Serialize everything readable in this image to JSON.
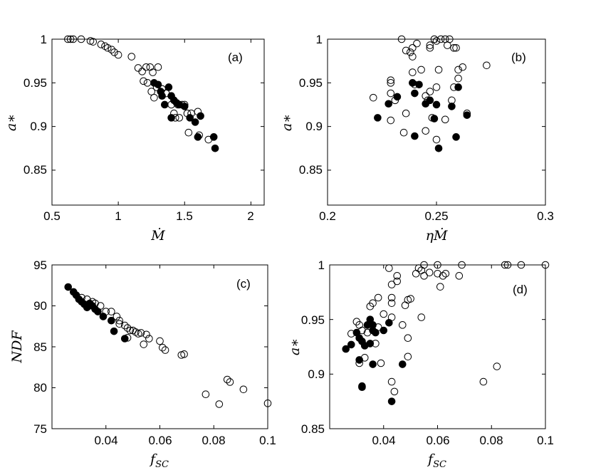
{
  "chart_data": [
    {
      "id": "a",
      "type": "scatter",
      "panel_label": "(a)",
      "xlabel": "Ṁ",
      "ylabel": "a∗",
      "xlim": [
        0.5,
        2.1
      ],
      "ylim": [
        0.81,
        1.0
      ],
      "xticks": [
        0.5,
        1,
        1.5,
        2
      ],
      "yticks": [
        0.85,
        0.9,
        0.95,
        1
      ],
      "xtick_labels": [
        "0.5",
        "1",
        "1.5",
        "2"
      ],
      "ytick_labels": [
        "0.85",
        "0.9",
        "0.95",
        "1"
      ],
      "series": [
        {
          "name": "open",
          "filled": false,
          "points": [
            [
              0.62,
              1.0
            ],
            [
              0.64,
              1.0
            ],
            [
              0.66,
              1.0
            ],
            [
              0.72,
              1.0
            ],
            [
              0.79,
              0.998
            ],
            [
              0.81,
              0.997
            ],
            [
              0.87,
              0.994
            ],
            [
              0.9,
              0.992
            ],
            [
              0.92,
              0.99
            ],
            [
              0.95,
              0.988
            ],
            [
              0.97,
              0.985
            ],
            [
              1.0,
              0.982
            ],
            [
              1.1,
              0.98
            ],
            [
              1.15,
              0.967
            ],
            [
              1.18,
              0.963
            ],
            [
              1.21,
              0.968
            ],
            [
              1.24,
              0.968
            ],
            [
              1.26,
              0.962
            ],
            [
              1.3,
              0.968
            ],
            [
              1.19,
              0.952
            ],
            [
              1.22,
              0.95
            ],
            [
              1.25,
              0.94
            ],
            [
              1.27,
              0.933
            ],
            [
              1.33,
              0.943
            ],
            [
              1.36,
              0.938
            ],
            [
              1.29,
              0.945
            ],
            [
              1.4,
              0.925
            ],
            [
              1.45,
              0.925
            ],
            [
              1.42,
              0.915
            ],
            [
              1.48,
              0.925
            ],
            [
              1.5,
              0.925
            ],
            [
              1.43,
              0.91
            ],
            [
              1.46,
              0.91
            ],
            [
              1.52,
              0.915
            ],
            [
              1.55,
              0.915
            ],
            [
              1.6,
              0.917
            ],
            [
              1.53,
              0.893
            ],
            [
              1.61,
              0.89
            ],
            [
              1.68,
              0.885
            ]
          ]
        },
        {
          "name": "filled",
          "filled": true,
          "points": [
            [
              1.27,
              0.95
            ],
            [
              1.3,
              0.948
            ],
            [
              1.32,
              0.94
            ],
            [
              1.33,
              0.935
            ],
            [
              1.35,
              0.925
            ],
            [
              1.38,
              0.945
            ],
            [
              1.4,
              0.935
            ],
            [
              1.42,
              0.93
            ],
            [
              1.44,
              0.927
            ],
            [
              1.46,
              0.925
            ],
            [
              1.5,
              0.923
            ],
            [
              1.54,
              0.91
            ],
            [
              1.58,
              0.905
            ],
            [
              1.62,
              0.912
            ],
            [
              1.4,
              0.91
            ],
            [
              1.6,
              0.888
            ],
            [
              1.72,
              0.888
            ],
            [
              1.73,
              0.875
            ]
          ]
        }
      ]
    },
    {
      "id": "b",
      "type": "scatter",
      "panel_label": "(b)",
      "xlabel": "ηṀ",
      "ylabel": "a∗",
      "xlim": [
        0.2,
        0.3
      ],
      "ylim": [
        0.81,
        1.0
      ],
      "xticks": [
        0.2,
        0.25,
        0.3
      ],
      "yticks": [
        0.85,
        0.9,
        0.95,
        1
      ],
      "xtick_labels": [
        "0.2",
        "0.25",
        "0.3"
      ],
      "ytick_labels": [
        "0.85",
        "0.9",
        "0.95",
        "1"
      ],
      "series": [
        {
          "name": "open",
          "filled": false,
          "points": [
            [
              0.234,
              1.0
            ],
            [
              0.249,
              1.0
            ],
            [
              0.252,
              1.0
            ],
            [
              0.254,
              1.0
            ],
            [
              0.256,
              1.0
            ],
            [
              0.25,
              0.998
            ],
            [
              0.241,
              0.995
            ],
            [
              0.247,
              0.993
            ],
            [
              0.239,
              0.99
            ],
            [
              0.247,
              0.99
            ],
            [
              0.255,
              0.993
            ],
            [
              0.258,
              0.99
            ],
            [
              0.259,
              0.99
            ],
            [
              0.236,
              0.987
            ],
            [
              0.238,
              0.985
            ],
            [
              0.239,
              0.98
            ],
            [
              0.26,
              0.965
            ],
            [
              0.262,
              0.968
            ],
            [
              0.273,
              0.97
            ],
            [
              0.239,
              0.962
            ],
            [
              0.243,
              0.965
            ],
            [
              0.251,
              0.965
            ],
            [
              0.26,
              0.955
            ],
            [
              0.229,
              0.953
            ],
            [
              0.229,
              0.95
            ],
            [
              0.221,
              0.933
            ],
            [
              0.229,
              0.938
            ],
            [
              0.231,
              0.93
            ],
            [
              0.24,
              0.948
            ],
            [
              0.245,
              0.935
            ],
            [
              0.247,
              0.94
            ],
            [
              0.25,
              0.945
            ],
            [
              0.246,
              0.93
            ],
            [
              0.258,
              0.945
            ],
            [
              0.257,
              0.93
            ],
            [
              0.264,
              0.915
            ],
            [
              0.236,
              0.915
            ],
            [
              0.248,
              0.91
            ],
            [
              0.254,
              0.908
            ],
            [
              0.229,
              0.907
            ],
            [
              0.235,
              0.893
            ],
            [
              0.245,
              0.895
            ],
            [
              0.25,
              0.885
            ]
          ]
        },
        {
          "name": "filled",
          "filled": true,
          "points": [
            [
              0.232,
              0.934
            ],
            [
              0.239,
              0.95
            ],
            [
              0.24,
              0.938
            ],
            [
              0.242,
              0.948
            ],
            [
              0.228,
              0.926
            ],
            [
              0.245,
              0.926
            ],
            [
              0.247,
              0.93
            ],
            [
              0.26,
              0.945
            ],
            [
              0.25,
              0.925
            ],
            [
              0.257,
              0.923
            ],
            [
              0.264,
              0.913
            ],
            [
              0.223,
              0.91
            ],
            [
              0.249,
              0.909
            ],
            [
              0.24,
              0.889
            ],
            [
              0.259,
              0.888
            ],
            [
              0.251,
              0.875
            ]
          ]
        }
      ]
    },
    {
      "id": "c",
      "type": "scatter",
      "panel_label": "(c)",
      "xlabel": "fSC",
      "ylabel": "NDF",
      "xlim": [
        0.02,
        0.1
      ],
      "ylim": [
        75,
        95
      ],
      "xticks": [
        0.04,
        0.06,
        0.08,
        0.1
      ],
      "yticks": [
        75,
        80,
        85,
        90,
        95
      ],
      "xtick_labels": [
        "0.04",
        "0.06",
        "0.08",
        "0.1"
      ],
      "ytick_labels": [
        "75",
        "80",
        "85",
        "90",
        "95"
      ],
      "series": [
        {
          "name": "open",
          "filled": false,
          "points": [
            [
              0.031,
              91.0
            ],
            [
              0.033,
              90.8
            ],
            [
              0.035,
              90.5
            ],
            [
              0.036,
              90.3
            ],
            [
              0.038,
              90.0
            ],
            [
              0.04,
              89.3
            ],
            [
              0.042,
              89.3
            ],
            [
              0.044,
              88.7
            ],
            [
              0.045,
              88.2
            ],
            [
              0.047,
              87.6
            ],
            [
              0.048,
              87.3
            ],
            [
              0.049,
              87.0
            ],
            [
              0.05,
              87.0
            ],
            [
              0.051,
              86.8
            ],
            [
              0.053,
              86.7
            ],
            [
              0.055,
              86.5
            ],
            [
              0.056,
              86.0
            ],
            [
              0.045,
              87.8
            ],
            [
              0.048,
              86.1
            ],
            [
              0.052,
              86.6
            ],
            [
              0.054,
              85.3
            ],
            [
              0.06,
              85.7
            ],
            [
              0.061,
              84.9
            ],
            [
              0.062,
              84.6
            ],
            [
              0.068,
              84.0
            ],
            [
              0.069,
              84.1
            ],
            [
              0.085,
              81.0
            ],
            [
              0.086,
              80.7
            ],
            [
              0.077,
              79.2
            ],
            [
              0.091,
              79.8
            ],
            [
              0.082,
              78.0
            ],
            [
              0.1,
              78.1
            ]
          ]
        },
        {
          "name": "filled",
          "filled": true,
          "points": [
            [
              0.026,
              92.3
            ],
            [
              0.028,
              91.7
            ],
            [
              0.029,
              91.3
            ],
            [
              0.03,
              90.8
            ],
            [
              0.031,
              90.5
            ],
            [
              0.032,
              90.2
            ],
            [
              0.033,
              89.8
            ],
            [
              0.034,
              90.3
            ],
            [
              0.035,
              90.0
            ],
            [
              0.036,
              89.6
            ],
            [
              0.037,
              89.3
            ],
            [
              0.039,
              88.7
            ],
            [
              0.042,
              88.2
            ],
            [
              0.043,
              86.9
            ],
            [
              0.047,
              86.0
            ]
          ]
        }
      ]
    },
    {
      "id": "d",
      "type": "scatter",
      "panel_label": "(d)",
      "xlabel": "fSC",
      "ylabel": "a∗",
      "xlim": [
        0.02,
        0.1
      ],
      "ylim": [
        0.85,
        1.0
      ],
      "xticks": [
        0.04,
        0.06,
        0.08,
        0.1
      ],
      "yticks": [
        0.85,
        0.9,
        0.95,
        1
      ],
      "xtick_labels": [
        "0.04",
        "0.06",
        "0.08",
        "0.1"
      ],
      "ytick_labels": [
        "0.85",
        "0.9",
        "0.95",
        "1"
      ],
      "series": [
        {
          "name": "open",
          "filled": false,
          "points": [
            [
              0.055,
              1.0
            ],
            [
              0.06,
              1.0
            ],
            [
              0.069,
              1.0
            ],
            [
              0.085,
              1.0
            ],
            [
              0.086,
              1.0
            ],
            [
              0.091,
              1.0
            ],
            [
              0.1,
              1.0
            ],
            [
              0.042,
              0.997
            ],
            [
              0.053,
              0.997
            ],
            [
              0.054,
              0.995
            ],
            [
              0.057,
              0.993
            ],
            [
              0.052,
              0.992
            ],
            [
              0.06,
              0.992
            ],
            [
              0.062,
              0.99
            ],
            [
              0.063,
              0.992
            ],
            [
              0.045,
              0.99
            ],
            [
              0.055,
              0.99
            ],
            [
              0.045,
              0.985
            ],
            [
              0.068,
              0.99
            ],
            [
              0.043,
              0.982
            ],
            [
              0.061,
              0.98
            ],
            [
              0.038,
              0.97
            ],
            [
              0.043,
              0.97
            ],
            [
              0.049,
              0.968
            ],
            [
              0.05,
              0.969
            ],
            [
              0.043,
              0.965
            ],
            [
              0.036,
              0.965
            ],
            [
              0.035,
              0.962
            ],
            [
              0.048,
              0.963
            ],
            [
              0.04,
              0.955
            ],
            [
              0.043,
              0.952
            ],
            [
              0.054,
              0.952
            ],
            [
              0.03,
              0.948
            ],
            [
              0.031,
              0.945
            ],
            [
              0.032,
              0.94
            ],
            [
              0.034,
              0.938
            ],
            [
              0.038,
              0.943
            ],
            [
              0.028,
              0.937
            ],
            [
              0.047,
              0.945
            ],
            [
              0.037,
              0.928
            ],
            [
              0.049,
              0.933
            ],
            [
              0.033,
              0.915
            ],
            [
              0.049,
              0.916
            ],
            [
              0.031,
              0.91
            ],
            [
              0.039,
              0.91
            ],
            [
              0.077,
              0.893
            ],
            [
              0.043,
              0.893
            ],
            [
              0.082,
              0.907
            ],
            [
              0.044,
              0.884
            ]
          ]
        },
        {
          "name": "filled",
          "filled": true,
          "points": [
            [
              0.026,
              0.923
            ],
            [
              0.028,
              0.927
            ],
            [
              0.03,
              0.938
            ],
            [
              0.031,
              0.933
            ],
            [
              0.032,
              0.93
            ],
            [
              0.033,
              0.926
            ],
            [
              0.034,
              0.945
            ],
            [
              0.035,
              0.928
            ],
            [
              0.036,
              0.945
            ],
            [
              0.035,
              0.95
            ],
            [
              0.036,
              0.94
            ],
            [
              0.037,
              0.938
            ],
            [
              0.04,
              0.94
            ],
            [
              0.042,
              0.947
            ],
            [
              0.031,
              0.913
            ],
            [
              0.036,
              0.909
            ],
            [
              0.047,
              0.909
            ],
            [
              0.032,
              0.889
            ],
            [
              0.032,
              0.888
            ],
            [
              0.043,
              0.875
            ]
          ]
        }
      ]
    }
  ]
}
